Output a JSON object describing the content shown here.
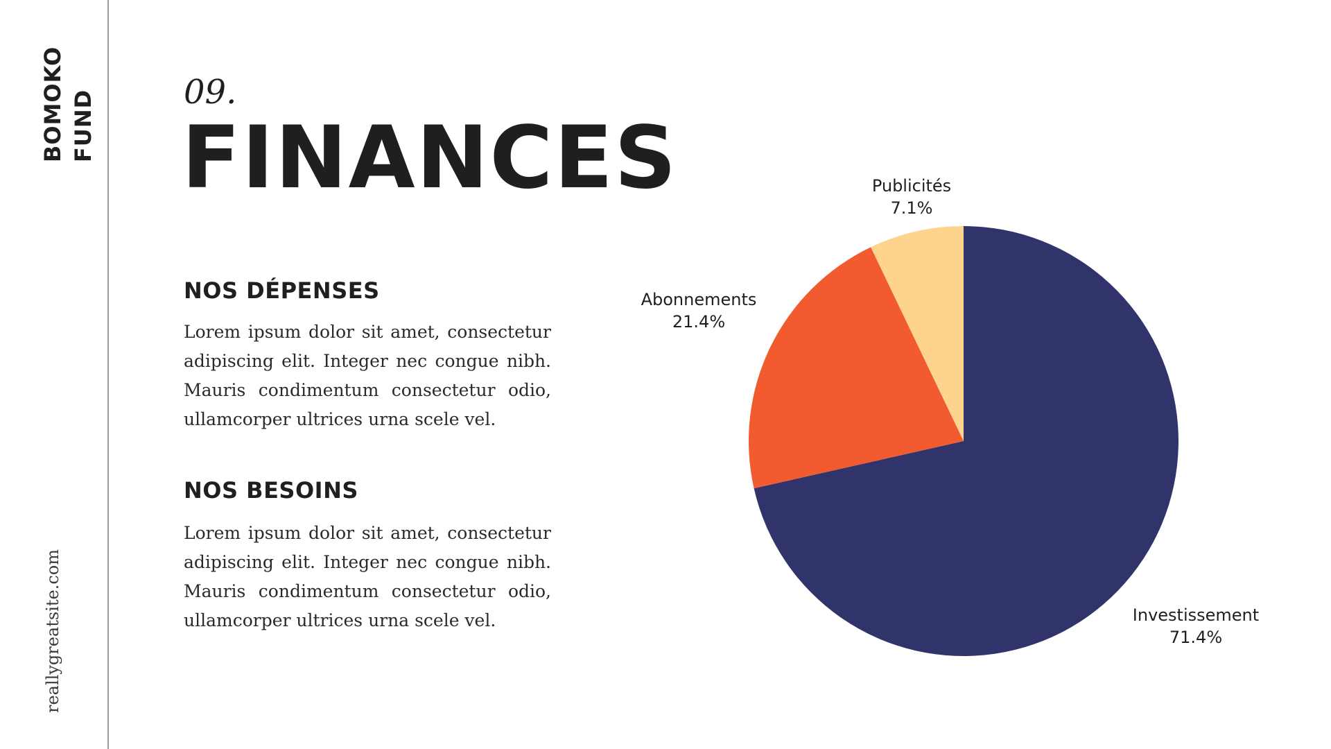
{
  "sidebar": {
    "brand_line1": "BOMOKO",
    "brand_line2": "FUND",
    "website": "reallygreatsite.com"
  },
  "header": {
    "number": "09.",
    "title": "FINANCES"
  },
  "sections": [
    {
      "heading": "NOS DÉPENSES",
      "body": "Lorem ipsum dolor sit amet, consectetur adipiscing elit. Integer nec congue nibh. Mauris condimentum consectetur odio, ullamcorper ultrices urna scele vel."
    },
    {
      "heading": "NOS BESOINS",
      "body": "Lorem ipsum dolor sit amet, consectetur adipiscing elit. Integer nec congue nibh. Mauris condimentum consectetur odio, ullamcorper ultrices urna scele vel."
    }
  ],
  "chart_data": {
    "type": "pie",
    "start": "12 o'clock",
    "direction": "clockwise",
    "slices": [
      {
        "label": "Investissement",
        "value": 71.4,
        "value_label": "71.4%",
        "color": "#30346b"
      },
      {
        "label": "Abonnements",
        "value": 21.4,
        "value_label": "21.4%",
        "color": "#f25a30"
      },
      {
        "label": "Publicités",
        "value": 7.1,
        "value_label": "7.1%",
        "color": "#fed38d"
      }
    ]
  }
}
